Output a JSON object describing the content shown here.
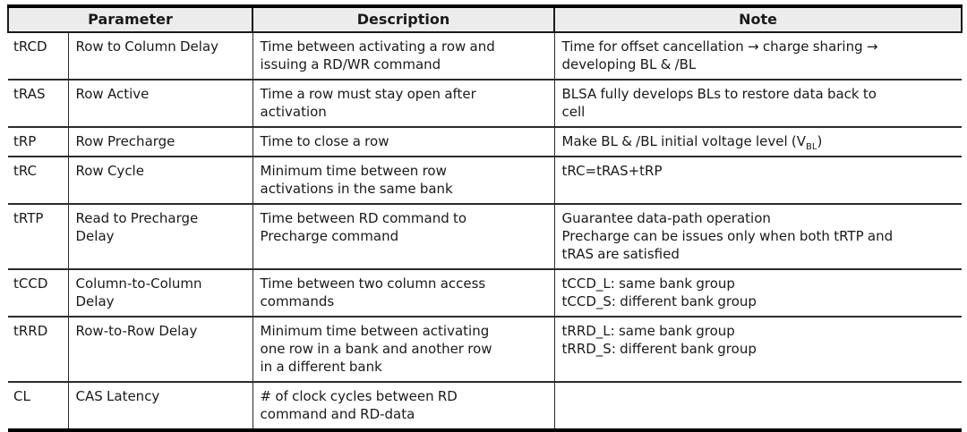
{
  "table": {
    "headers": [
      {
        "label": "Parameter"
      },
      {
        "label": "Description"
      },
      {
        "label": "Note"
      }
    ],
    "rows": [
      {
        "abbr": "tRCD",
        "name": "Row to Column Delay",
        "description": "Time between activating a row and\nissuing a RD/WR command",
        "note": "Time for offset cancellation → charge sharing →\ndeveloping BL & /BL"
      },
      {
        "abbr": "tRAS",
        "name": "Row Active",
        "description": "Time a row must stay open after\nactivation",
        "note": "BLSA fully develops BLs to restore data back to\ncell"
      },
      {
        "abbr": "tRP",
        "name": "Row Precharge",
        "description": "Time to close a row",
        "note": [
          {
            "t": "Make BL & /BL initial voltage level (V"
          },
          {
            "t": "BL",
            "sub": true
          },
          {
            "t": ")"
          }
        ]
      },
      {
        "abbr": "tRC",
        "name": "Row Cycle",
        "description": "Minimum time between row\nactivations in the same bank",
        "note": "tRC=tRAS+tRP"
      },
      {
        "abbr": "tRTP",
        "name": "Read to Precharge\nDelay",
        "description": "Time between RD command to\nPrecharge command",
        "note": "Guarantee data-path operation\nPrecharge can be issues only when both tRTP and\ntRAS are satisfied"
      },
      {
        "abbr": "tCCD",
        "name": "Column-to-Column\nDelay",
        "description": "Time between two column access\ncommands",
        "note": "tCCD_L: same bank group\ntCCD_S: different bank group"
      },
      {
        "abbr": "tRRD",
        "name": "Row-to-Row Delay",
        "description": "Minimum time between activating\none row in a bank and another row\nin a different bank",
        "note": "tRRD_L: same bank group\ntRRD_S: different bank group"
      },
      {
        "abbr": "CL",
        "name": "CAS Latency",
        "description": "# of clock cycles between RD\ncommand and RD-data",
        "note": ""
      }
    ]
  },
  "colors": {
    "page_background": "#ffffff",
    "header_background": "#ececec",
    "border": "#1a1a1a",
    "text": "#1a1a1a"
  }
}
